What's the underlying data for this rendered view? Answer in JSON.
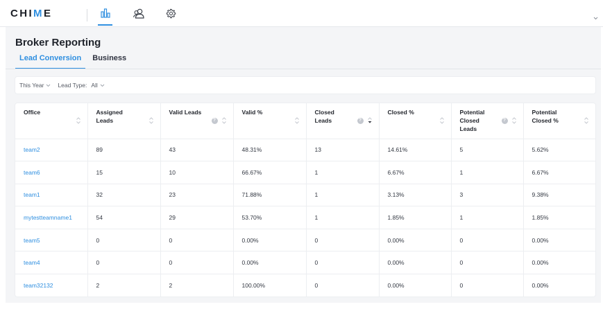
{
  "app": {
    "logo_text_1": "CHI",
    "logo_text_2": "M",
    "logo_text_3": "E"
  },
  "nav": {
    "icons": [
      "reports-icon",
      "people-icon",
      "settings-icon"
    ],
    "active": "reports-icon"
  },
  "page": {
    "title": "Broker Reporting"
  },
  "tabs": [
    {
      "label": "Lead Conversion",
      "active": true
    },
    {
      "label": "Business",
      "active": false
    }
  ],
  "filters": {
    "period": "This Year",
    "lead_type_label": "Lead Type:",
    "lead_type_value": "All"
  },
  "table": {
    "headers": [
      {
        "line1": "Office",
        "line2": "",
        "line3": ""
      },
      {
        "line1": "Assigned",
        "line2": "Leads",
        "line3": ""
      },
      {
        "line1": "Valid Leads",
        "line2": "",
        "line3": ""
      },
      {
        "line1": "Valid %",
        "line2": "",
        "line3": ""
      },
      {
        "line1": "Closed",
        "line2": "Leads",
        "line3": ""
      },
      {
        "line1": "Closed %",
        "line2": "",
        "line3": ""
      },
      {
        "line1": "Potential",
        "line2": "Closed",
        "line3": "Leads"
      },
      {
        "line1": "Potential",
        "line2": "Closed %",
        "line3": ""
      }
    ],
    "help_glyph": "?",
    "rows": [
      [
        "team2",
        "89",
        "43",
        "48.31%",
        "13",
        "14.61%",
        "5",
        "5.62%"
      ],
      [
        "team6",
        "15",
        "10",
        "66.67%",
        "1",
        "6.67%",
        "1",
        "6.67%"
      ],
      [
        "team1",
        "32",
        "23",
        "71.88%",
        "1",
        "3.13%",
        "3",
        "9.38%"
      ],
      [
        "mytestteamname1",
        "54",
        "29",
        "53.70%",
        "1",
        "1.85%",
        "1",
        "1.85%"
      ],
      [
        "team5",
        "0",
        "0",
        "0.00%",
        "0",
        "0.00%",
        "0",
        "0.00%"
      ],
      [
        "team4",
        "0",
        "0",
        "0.00%",
        "0",
        "0.00%",
        "0",
        "0.00%"
      ],
      [
        "team32132",
        "2",
        "2",
        "100.00%",
        "0",
        "0.00%",
        "0",
        "0.00%"
      ]
    ]
  },
  "colors": {
    "accent": "#2f8fe0",
    "background": "#f4f5f7"
  }
}
